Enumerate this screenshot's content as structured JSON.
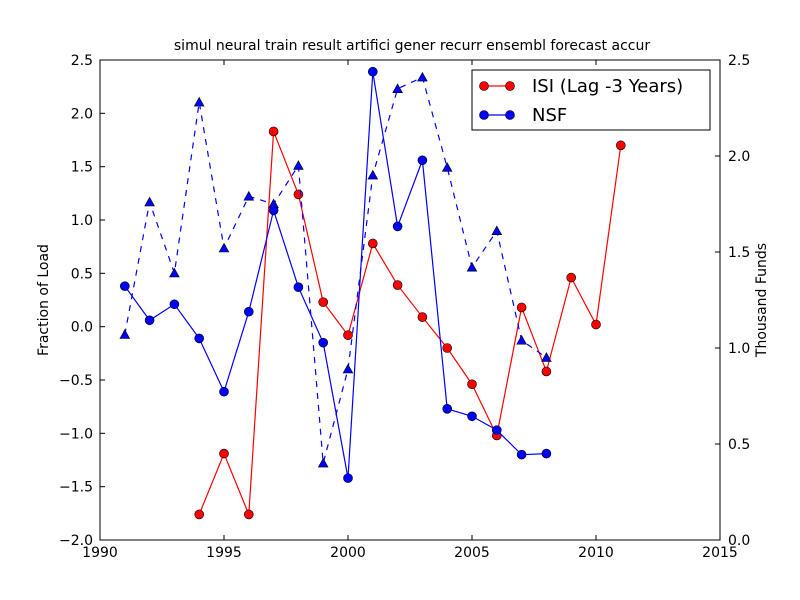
{
  "chart_data": {
    "type": "line",
    "title": "simul neural train result artifici gener recurr ensembl forecast accur",
    "xlabel": "",
    "ylabel_left": "Fraction of Load",
    "ylabel_right": "Thousand Funds",
    "xlim": [
      1990,
      2015
    ],
    "ylim_left": [
      -2.0,
      2.5
    ],
    "ylim_right": [
      0.0,
      2.5
    ],
    "x_ticks": [
      "1990",
      "1995",
      "2000",
      "2005",
      "2010",
      "2015"
    ],
    "y_left_ticks": [
      "−2.0",
      "−1.5",
      "−1.0",
      "−0.5",
      "0.0",
      "0.5",
      "1.0",
      "1.5",
      "2.0",
      "2.5"
    ],
    "y_right_ticks": [
      "0.0",
      "0.5",
      "1.0",
      "1.5",
      "2.0",
      "2.5"
    ],
    "legend": {
      "position": "top-right",
      "entries": [
        "ISI (Lag -3 Years)",
        "NSF"
      ]
    },
    "series": [
      {
        "name": "ISI (Lag -3 Years)",
        "axis": "left",
        "color": "#ff0000",
        "style": "solid",
        "marker": "circle",
        "points": [
          [
            1994,
            -1.76
          ],
          [
            1995,
            -1.19
          ],
          [
            1996,
            -1.76
          ],
          [
            1997,
            1.83
          ],
          [
            1998,
            1.24
          ],
          [
            1999,
            0.23
          ],
          [
            2000,
            -0.08
          ],
          [
            2001,
            0.78
          ],
          [
            2002,
            0.39
          ],
          [
            2003,
            0.09
          ],
          [
            2004,
            -0.2
          ],
          [
            2005,
            -0.54
          ],
          [
            2006,
            -1.02
          ],
          [
            2007,
            0.18
          ],
          [
            2008,
            -0.42
          ],
          [
            2009,
            0.46
          ],
          [
            2010,
            0.02
          ],
          [
            2011,
            1.7
          ]
        ]
      },
      {
        "name": "NSF",
        "axis": "left",
        "color": "#0000ff",
        "style": "solid",
        "marker": "circle",
        "points": [
          [
            1991,
            0.38
          ],
          [
            1992,
            0.06
          ],
          [
            1993,
            0.21
          ],
          [
            1994,
            -0.11
          ],
          [
            1995,
            -0.61
          ],
          [
            1996,
            0.14
          ],
          [
            1997,
            1.09
          ],
          [
            1998,
            0.37
          ],
          [
            1999,
            -0.15
          ],
          [
            2000,
            -1.42
          ],
          [
            2001,
            2.39
          ],
          [
            2002,
            0.94
          ],
          [
            2003,
            1.56
          ],
          [
            2004,
            -0.77
          ],
          [
            2005,
            -0.84
          ],
          [
            2006,
            -0.97
          ],
          [
            2007,
            -1.2
          ],
          [
            2008,
            -1.19
          ]
        ]
      },
      {
        "name": "NSF (Thousand Funds)",
        "axis": "right",
        "color": "#0000ff",
        "style": "dashed",
        "marker": "triangle",
        "points": [
          [
            1991,
            1.07
          ],
          [
            1992,
            1.76
          ],
          [
            1993,
            1.39
          ],
          [
            1994,
            2.28
          ],
          [
            1995,
            1.52
          ],
          [
            1996,
            1.79
          ],
          [
            1997,
            1.75
          ],
          [
            1998,
            1.95
          ],
          [
            1999,
            0.4
          ],
          [
            2000,
            0.89
          ],
          [
            2001,
            1.9
          ],
          [
            2002,
            2.35
          ],
          [
            2003,
            2.41
          ],
          [
            2004,
            1.94
          ],
          [
            2005,
            1.42
          ],
          [
            2006,
            1.61
          ],
          [
            2007,
            1.04
          ],
          [
            2008,
            0.95
          ]
        ]
      }
    ]
  }
}
